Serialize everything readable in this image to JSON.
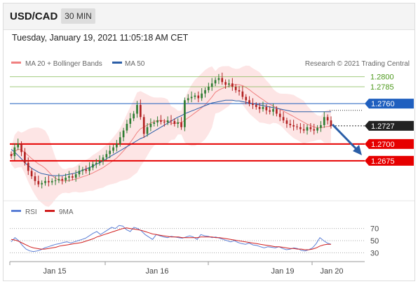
{
  "header": {
    "symbol": "USD/CAD",
    "timeframe": "30 MIN"
  },
  "datetime": "Tuesday, January 19, 2021 11:05:18 AM CET",
  "legend": {
    "ma20": "MA 20 + Bollinger Bands",
    "ma50": "MA 50",
    "copyright": "Research © 2021 Trading Central"
  },
  "rsi_legend": {
    "rsi": "RSI",
    "ma": "9MA"
  },
  "colors": {
    "bollinger": "#f08080",
    "ma50": "#2b5ea7",
    "candle_up": "#2e7d32",
    "candle_down": "#b22222",
    "resistance": "#7ab648",
    "pivot": "#1f5fbf",
    "support": "#e60000",
    "arrow": "#2b5ea7",
    "rsi": "#5b7fd6",
    "rsi_ma": "#d11f1f"
  },
  "chart_data": [
    {
      "type": "candlestick",
      "title": "USD/CAD 30 MIN",
      "x_ticks": [
        "Jan 15",
        "Jan 16",
        "Jan 19",
        "Jan 20"
      ],
      "ylim": [
        1.2625,
        1.281
      ],
      "levels": [
        {
          "value": 1.28,
          "label": "1.2800",
          "kind": "resistance"
        },
        {
          "value": 1.2785,
          "label": "1.2785",
          "kind": "resistance"
        },
        {
          "value": 1.276,
          "label": "1.2760",
          "kind": "pivot"
        },
        {
          "value": 1.2727,
          "label": "1.2727",
          "kind": "last"
        },
        {
          "value": 1.27,
          "label": "1.2700",
          "kind": "support"
        },
        {
          "value": 1.2675,
          "label": "1.2675",
          "kind": "support"
        }
      ],
      "close_series": [
        1.2682,
        1.2695,
        1.27,
        1.2688,
        1.2672,
        1.266,
        1.2652,
        1.2645,
        1.264,
        1.2642,
        1.2645,
        1.2643,
        1.2645,
        1.2646,
        1.2648,
        1.2646,
        1.265,
        1.2652,
        1.265,
        1.2655,
        1.266,
        1.2662,
        1.266,
        1.2665,
        1.267,
        1.2672,
        1.2675,
        1.268,
        1.2685,
        1.269,
        1.2695,
        1.27,
        1.271,
        1.272,
        1.273,
        1.2738,
        1.2745,
        1.2758,
        1.274,
        1.2715,
        1.2725,
        1.273,
        1.2732,
        1.2735,
        1.2733,
        1.2732,
        1.2735,
        1.2734,
        1.273,
        1.2732,
        1.2725,
        1.2765,
        1.2768,
        1.277,
        1.2772,
        1.2768,
        1.2775,
        1.278,
        1.2785,
        1.279,
        1.2795,
        1.2798,
        1.2792,
        1.2788,
        1.279,
        1.2785,
        1.278,
        1.2778,
        1.277,
        1.2765,
        1.276,
        1.2758,
        1.2755,
        1.2752,
        1.2755,
        1.275,
        1.2748,
        1.2752,
        1.2745,
        1.274,
        1.2735,
        1.273,
        1.2728,
        1.2726,
        1.2725,
        1.2722,
        1.272,
        1.2725,
        1.2722,
        1.272,
        1.2724,
        1.2728,
        1.274,
        1.2735,
        1.2727
      ],
      "ma50": [
        1.2692,
        1.2688,
        1.2683,
        1.2678,
        1.2672,
        1.2668,
        1.2664,
        1.2661,
        1.2658,
        1.2656,
        1.2655,
        1.2654,
        1.2653,
        1.2653,
        1.2653,
        1.2653,
        1.2654,
        1.2655,
        1.2656,
        1.2657,
        1.2659,
        1.2661,
        1.2663,
        1.2665,
        1.2667,
        1.267,
        1.2672,
        1.2675,
        1.2678,
        1.2681,
        1.2684,
        1.2687,
        1.269,
        1.2693,
        1.2696,
        1.2699,
        1.2702,
        1.2705,
        1.2708,
        1.271,
        1.2713,
        1.2716,
        1.2719,
        1.2722,
        1.2725,
        1.2728,
        1.2731,
        1.2734,
        1.2737,
        1.274,
        1.2742,
        1.2745,
        1.2747,
        1.2749,
        1.2751,
        1.2753,
        1.2755,
        1.2757,
        1.2759,
        1.2761,
        1.2762,
        1.2763,
        1.2764,
        1.2765,
        1.2765,
        1.2765,
        1.2764,
        1.2764,
        1.2763,
        1.2762,
        1.2761,
        1.276,
        1.2759,
        1.2758,
        1.2757,
        1.2756,
        1.2755,
        1.2754,
        1.2753,
        1.2752,
        1.2751,
        1.275,
        1.2749,
        1.2748,
        1.2748,
        1.2748,
        1.2748,
        1.2748,
        1.2748,
        1.2748,
        1.2748,
        1.2748,
        1.2748,
        1.2748,
        1.2748
      ]
    },
    {
      "type": "line",
      "title": "RSI",
      "y_ticks": [
        "70",
        "50",
        "30"
      ],
      "ylim": [
        20,
        80
      ],
      "series": [
        {
          "name": "RSI",
          "values": [
            48,
            55,
            50,
            42,
            36,
            33,
            32,
            33,
            35,
            38,
            40,
            42,
            44,
            45,
            47,
            48,
            46,
            48,
            50,
            52,
            54,
            58,
            62,
            65,
            60,
            64,
            68,
            72,
            70,
            75,
            74,
            68,
            65,
            72,
            70,
            66,
            60,
            56,
            52,
            60,
            58,
            56,
            55,
            57,
            56,
            55,
            54,
            56,
            58,
            56,
            52,
            60,
            58,
            57,
            55,
            56,
            54,
            52,
            50,
            48,
            50,
            47,
            45,
            44,
            46,
            43,
            42,
            40,
            38,
            40,
            39,
            38,
            40,
            37,
            35,
            36,
            38,
            37,
            34,
            33,
            35,
            38,
            45,
            55,
            50,
            46,
            44
          ]
        },
        {
          "name": "9MA",
          "values": [
            52,
            51,
            49,
            46,
            43,
            40,
            38,
            37,
            36,
            36,
            37,
            38,
            39,
            41,
            42,
            43,
            44,
            45,
            46,
            47,
            49,
            51,
            53,
            56,
            58,
            60,
            62,
            64,
            66,
            68,
            70,
            71,
            70,
            69,
            68,
            67,
            65,
            63,
            61,
            60,
            59,
            58,
            57,
            56,
            56,
            56,
            55,
            55,
            55,
            55,
            55,
            56,
            56,
            56,
            56,
            55,
            55,
            54,
            53,
            52,
            51,
            50,
            49,
            48,
            47,
            46,
            45,
            44,
            43,
            42,
            41,
            40,
            40,
            39,
            38,
            37,
            37,
            36,
            36,
            35,
            35,
            36,
            38,
            41,
            43,
            44,
            44
          ]
        }
      ]
    }
  ]
}
